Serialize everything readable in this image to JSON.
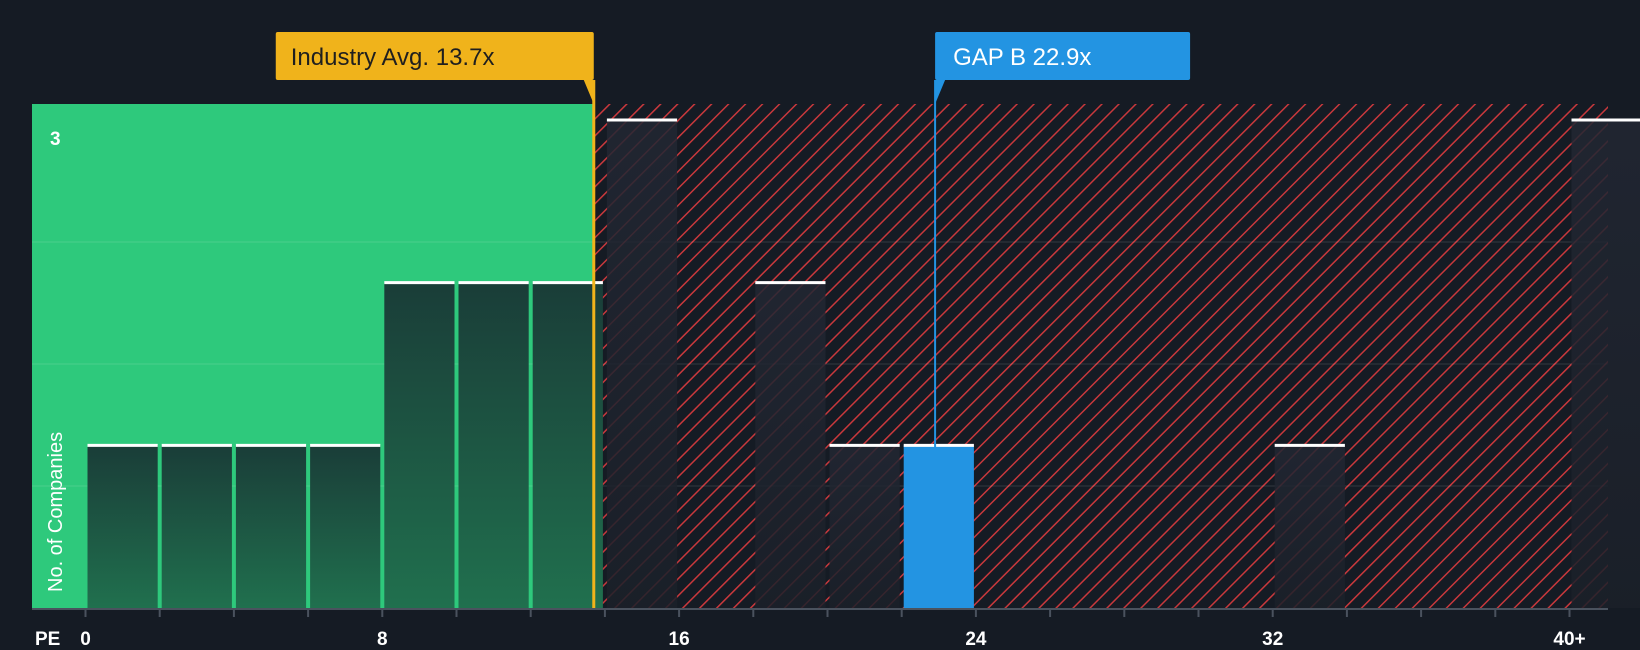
{
  "chart_data": {
    "type": "histogram",
    "xlabel": "PE",
    "ylabel": "No. of Companies",
    "xlim": [
      0,
      41
    ],
    "ylim": [
      0,
      3
    ],
    "x_ticks": [
      0,
      8,
      16,
      24,
      32,
      40
    ],
    "x_tick_labels": [
      "0",
      "8",
      "16",
      "24",
      "32",
      "40+"
    ],
    "y_tick_label": "3",
    "bin_width": 2,
    "bins": [
      {
        "x": 0,
        "count": 1
      },
      {
        "x": 2,
        "count": 1
      },
      {
        "x": 4,
        "count": 1
      },
      {
        "x": 6,
        "count": 1
      },
      {
        "x": 8,
        "count": 2
      },
      {
        "x": 10,
        "count": 2
      },
      {
        "x": 12,
        "count": 2
      },
      {
        "x": 14,
        "count": 3
      },
      {
        "x": 18,
        "count": 2
      },
      {
        "x": 20,
        "count": 1
      },
      {
        "x": 22,
        "count": 1,
        "highlight": true
      },
      {
        "x": 32,
        "count": 1
      },
      {
        "x": 40,
        "count": 3
      }
    ],
    "fair_value_upper": 13.7,
    "industry_avg": {
      "value": 13.7,
      "label": "Industry Avg. 13.7x"
    },
    "company": {
      "value": 22.9,
      "label": "GAP B 22.9x"
    },
    "colors": {
      "background": "#151b24",
      "undervalued": "#2ec97c",
      "overvalued_hatch": "#c8383c",
      "industry": "#f0b31b",
      "company": "#2394e2",
      "bar_top": "#ffffff"
    }
  }
}
